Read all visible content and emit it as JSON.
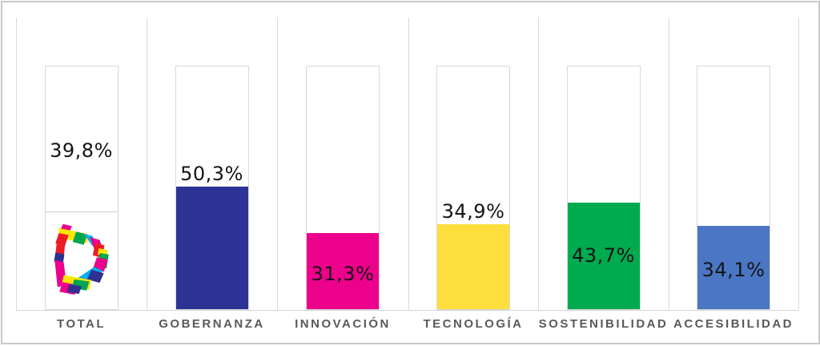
{
  "chart_data": {
    "type": "bar",
    "title": "",
    "xlabel": "",
    "ylabel": "",
    "unit": "%",
    "ylim": [
      0,
      100
    ],
    "grid": "vertical category separators only",
    "legend": "none",
    "categories": [
      "TOTAL",
      "GOBERNANZA",
      "INNOVACIÓN",
      "TECNOLOGÍA",
      "SOSTENIBILIDAD",
      "ACCESIBILIDAD"
    ],
    "values": [
      39.8,
      50.3,
      31.3,
      34.9,
      43.7,
      34.1
    ],
    "value_labels": [
      "39,8%",
      "50,3%",
      "31,3%",
      "34,9%",
      "43,7%",
      "34,1%"
    ],
    "bar_colors": [
      "#ffffff",
      "#2d3394",
      "#ec008c",
      "#fdde3d",
      "#00ab50",
      "#4a76c4"
    ],
    "label_placements": [
      "high-above",
      "above",
      "inside",
      "above",
      "inside",
      "inside"
    ],
    "logo_column_index": 0,
    "logo_name": "dti-hexagon-logo",
    "logo_palette": {
      "yellow": "#ffe600",
      "cyan": "#00aeef",
      "magenta": "#ec008c",
      "red": "#ed1c24",
      "green": "#00a551",
      "blue": "#2e3192"
    }
  },
  "styles": {
    "track_outline": "#d9d9d9",
    "separator": "#d9d9d9",
    "outer_border": "#c9c9c9",
    "value_label_color": "#141414",
    "category_label_color": "#595959",
    "background": "#ffffff"
  }
}
